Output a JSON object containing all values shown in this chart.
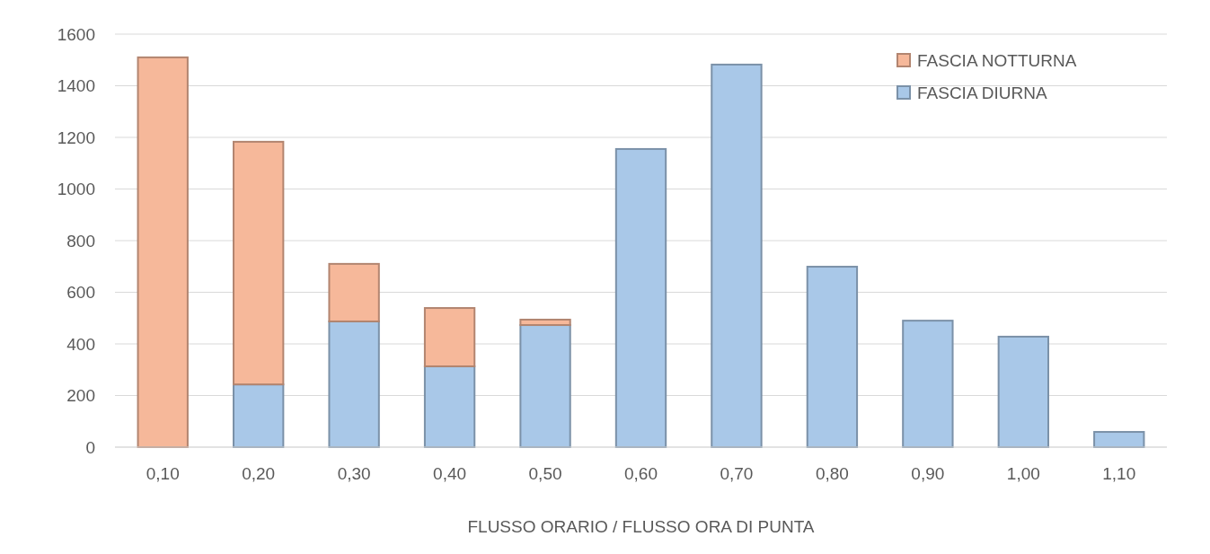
{
  "chart_data": {
    "type": "bar",
    "stacked": true,
    "xlabel": "FLUSSO ORARIO / FLUSSO ORA DI PUNTA",
    "categories": [
      "0,10",
      "0,20",
      "0,30",
      "0,40",
      "0,50",
      "0,60",
      "0,70",
      "0,80",
      "0,90",
      "1,00",
      "1,10"
    ],
    "series": [
      {
        "name": "FASCIA DIURNA",
        "color": "#a9c8e8",
        "values": [
          0,
          243,
          487,
          313,
          473,
          1155,
          1482,
          699,
          490,
          428,
          59
        ]
      },
      {
        "name": "FASCIA NOTTURNA",
        "color": "#f6b89a",
        "values": [
          1510,
          940,
          223,
          226,
          21,
          0,
          0,
          0,
          0,
          0,
          0
        ]
      }
    ],
    "ylim": [
      0,
      1600
    ],
    "yticks": [
      0,
      200,
      400,
      600,
      800,
      1000,
      1200,
      1400,
      1600
    ],
    "grid": "y",
    "legend": "top right"
  }
}
